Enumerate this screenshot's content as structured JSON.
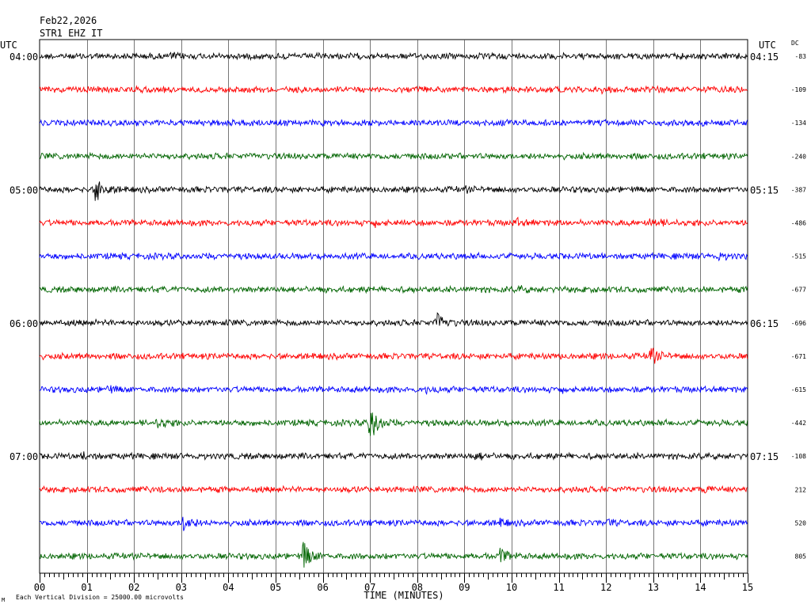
{
  "header": {
    "date": "Feb22,2026",
    "station": "STR1 EHZ IT"
  },
  "axes": {
    "left_tz": "UTC",
    "right_tz": "UTC",
    "dc_label": "DC",
    "xlabel": "TIME (MINUTES)",
    "footnote": "Each Vertical Division = 25000.00 microvolts",
    "footnote_mark": "M"
  },
  "colors": {
    "trace_cycle": [
      "#000000",
      "#ff0000",
      "#0000ff",
      "#006400"
    ],
    "grid": "#000000",
    "background": "#ffffff"
  },
  "chart_data": {
    "type": "line",
    "x_ticks": [
      "00",
      "01",
      "02",
      "03",
      "04",
      "05",
      "06",
      "07",
      "08",
      "09",
      "10",
      "11",
      "12",
      "13",
      "14",
      "15"
    ],
    "xlim": [
      0,
      15
    ],
    "left_time_labels": [
      {
        "row": 0,
        "text": "04:00"
      },
      {
        "row": 4,
        "text": "05:00"
      },
      {
        "row": 8,
        "text": "06:00"
      },
      {
        "row": 12,
        "text": "07:00"
      }
    ],
    "right_time_labels": [
      {
        "row": 0,
        "text": "04:15"
      },
      {
        "row": 4,
        "text": "05:15"
      },
      {
        "row": 8,
        "text": "06:15"
      },
      {
        "row": 12,
        "text": "07:15"
      }
    ],
    "dc_offsets": [
      "-83",
      "-109",
      "-134",
      "-240",
      "-387",
      "-486",
      "-515",
      "-677",
      "-696",
      "-671",
      "-615",
      "-442",
      "-108",
      "212",
      "520",
      "805"
    ],
    "events": [
      {
        "row": 0,
        "minute": 2.8,
        "amp": 1.4
      },
      {
        "row": 1,
        "minute": 1.75,
        "amp": 1.3
      },
      {
        "row": 1,
        "minute": 11.9,
        "amp": 1.4
      },
      {
        "row": 1,
        "minute": 12.95,
        "amp": 1.5
      },
      {
        "row": 2,
        "minute": 4.4,
        "amp": 1.3
      },
      {
        "row": 3,
        "minute": 2.6,
        "amp": 1.2
      },
      {
        "row": 4,
        "minute": 1.2,
        "amp": 4.0
      },
      {
        "row": 4,
        "minute": 9.05,
        "amp": 1.3
      },
      {
        "row": 5,
        "minute": 7.1,
        "amp": 1.6
      },
      {
        "row": 5,
        "minute": 10.1,
        "amp": 1.7
      },
      {
        "row": 5,
        "minute": 12.95,
        "amp": 2.2
      },
      {
        "row": 6,
        "minute": 14.4,
        "amp": 1.6
      },
      {
        "row": 7,
        "minute": 10.15,
        "amp": 1.5
      },
      {
        "row": 8,
        "minute": 8.4,
        "amp": 3.5
      },
      {
        "row": 9,
        "minute": 12.95,
        "amp": 3.0
      },
      {
        "row": 10,
        "minute": 1.45,
        "amp": 1.5
      },
      {
        "row": 10,
        "minute": 8.2,
        "amp": 1.5
      },
      {
        "row": 10,
        "minute": 11.05,
        "amp": 1.4
      },
      {
        "row": 11,
        "minute": 2.5,
        "amp": 2.4
      },
      {
        "row": 11,
        "minute": 7.0,
        "amp": 5.5
      },
      {
        "row": 12,
        "minute": 0.95,
        "amp": 1.6
      },
      {
        "row": 12,
        "minute": 9.25,
        "amp": 1.6
      },
      {
        "row": 13,
        "minute": 14.1,
        "amp": 1.5
      },
      {
        "row": 14,
        "minute": 3.05,
        "amp": 3.0
      },
      {
        "row": 14,
        "minute": 9.75,
        "amp": 1.6
      },
      {
        "row": 14,
        "minute": 12.05,
        "amp": 1.4
      },
      {
        "row": 15,
        "minute": 5.6,
        "amp": 4.0
      },
      {
        "row": 15,
        "minute": 9.75,
        "amp": 2.7
      }
    ]
  }
}
